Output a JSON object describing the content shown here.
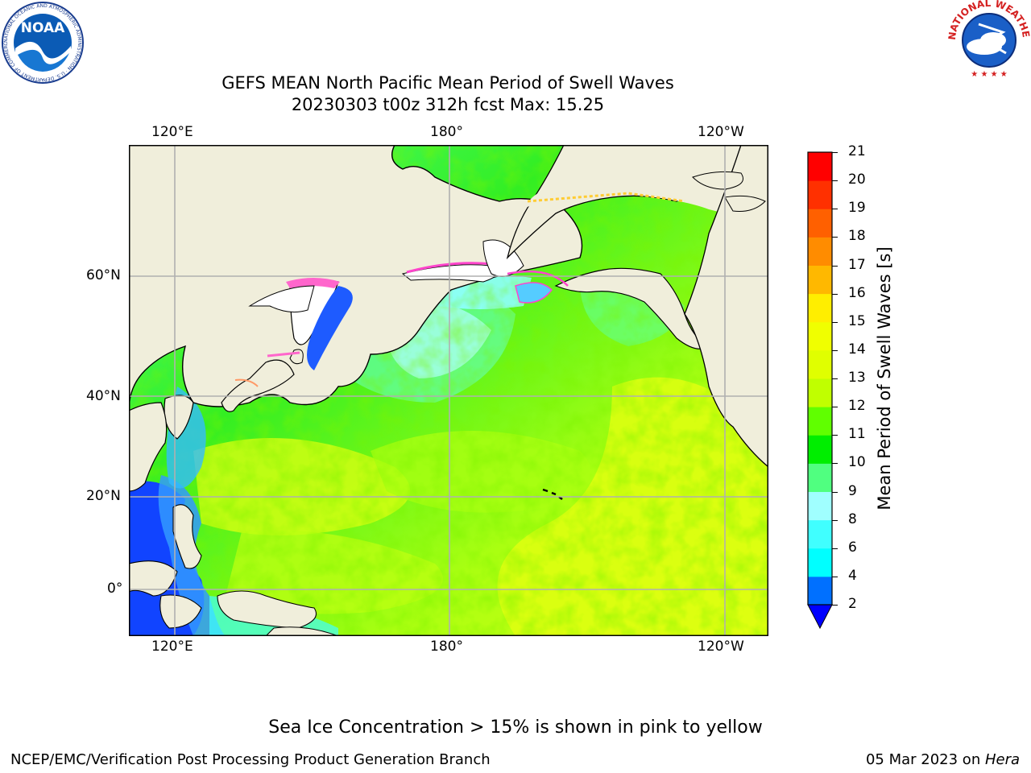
{
  "title_line1": "GEFS MEAN North Pacific Mean Period of Swell Waves",
  "title_line2": "20230303 t00z 312h fcst   Max: 15.25",
  "top_lon_ticks": [
    "120°E",
    "180°",
    "120°W"
  ],
  "bottom_lon_ticks": [
    "120°E",
    "180°",
    "120°W"
  ],
  "lat_ticks": [
    "60°N",
    "40°N",
    "20°N",
    "0°"
  ],
  "colorbar": {
    "title": "Mean Period of Swell Waves [s]",
    "ticks": [
      "21",
      "20",
      "19",
      "18",
      "17",
      "16",
      "15",
      "14",
      "13",
      "12",
      "11",
      "10",
      "9",
      "8",
      "6",
      "4",
      "2"
    ],
    "levels": [
      2,
      4,
      6,
      8,
      9,
      10,
      11,
      12,
      13,
      14,
      15,
      16,
      17,
      18,
      19,
      20,
      21
    ],
    "colors": [
      "#0070ff",
      "#00ffff",
      "#40ffff",
      "#a0ffff",
      "#50ff80",
      "#00ee00",
      "#60ff00",
      "#c0ff00",
      "#e0ff00",
      "#f0ff00",
      "#ffee00",
      "#ffb800",
      "#ff8c00",
      "#ff6000",
      "#ff3000",
      "#ff0000"
    ],
    "under_color": "#0000ff"
  },
  "logos": {
    "left_text": "NOAA",
    "left_ring_text": "NATIONAL OCEANIC AND ATMOSPHERIC ADMINISTRATION · U.S. DEPARTMENT OF COMMERCE",
    "right_ring_text": "NATIONAL WEATHER SERVICE"
  },
  "ice_note": "Sea Ice Concentration > 15% is shown in pink to yellow",
  "footer_left": "NCEP/EMC/Verification Post Processing Product Generation Branch",
  "footer_right_date": "05 Mar 2023 on ",
  "footer_right_host": "Hera"
}
